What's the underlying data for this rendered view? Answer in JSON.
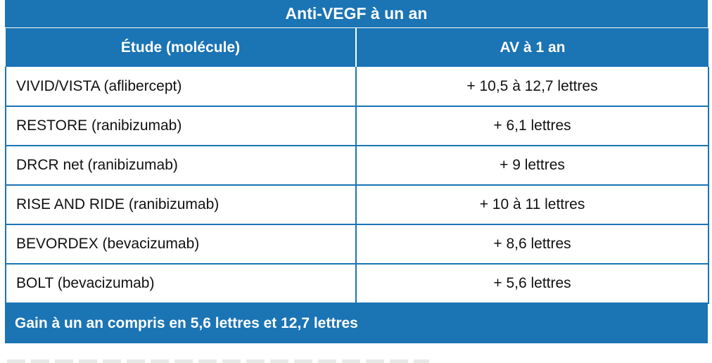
{
  "table": {
    "title": "Anti-VEGF à un an",
    "headers": {
      "study": "Étude (molécule)",
      "av": "AV à 1 an"
    },
    "rows": [
      {
        "study": "VIVID/VISTA (aflibercept)",
        "av": "+ 10,5 à 12,7 lettres"
      },
      {
        "study": "RESTORE (ranibizumab)",
        "av": "+ 6,1 lettres"
      },
      {
        "study": "DRCR net (ranibizumab)",
        "av": "+ 9 lettres"
      },
      {
        "study": "RISE AND RIDE (ranibizumab)",
        "av": "+ 10 à 11 lettres"
      },
      {
        "study": "BEVORDEX (bevacizumab)",
        "av": "+ 8,6 lettres"
      },
      {
        "study": "BOLT (bevacizumab)",
        "av": "+ 5,6 lettres"
      }
    ],
    "footer": "Gain à un an compris en 5,6 lettres et 12,7 lettres",
    "accent_color": "#1b74b4"
  }
}
